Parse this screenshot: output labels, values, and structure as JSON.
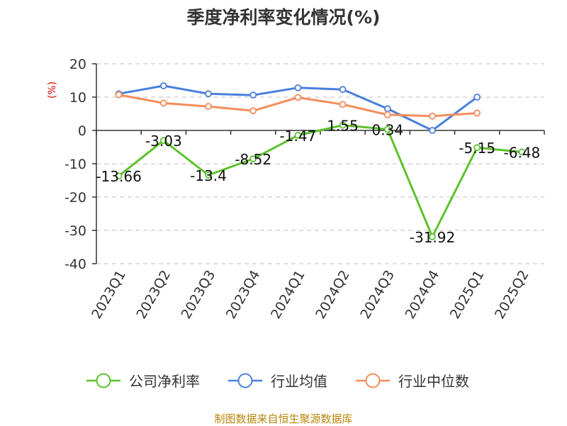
{
  "chart_data": {
    "type": "line",
    "title": "季度净利率变化情况(%)",
    "ylabel": "(%)",
    "xlabel": "",
    "categories": [
      "2023Q1",
      "2023Q2",
      "2023Q3",
      "2023Q4",
      "2024Q1",
      "2024Q2",
      "2024Q3",
      "2024Q4",
      "2025Q1",
      "2025Q2"
    ],
    "ylim": [
      -40,
      20
    ],
    "yticks": [
      20,
      10,
      0,
      -10,
      -20,
      -30,
      -40
    ],
    "grid": true,
    "legend_position": "bottom",
    "series": [
      {
        "name": "公司净利率",
        "color": "#5cc22c",
        "values": [
          -13.66,
          -3.03,
          -13.4,
          -8.52,
          -1.47,
          1.55,
          0.34,
          -31.92,
          -5.15,
          -6.48
        ],
        "labels": [
          "-13.66",
          "-3.03",
          "-13.4",
          "-8.52",
          "-1.47",
          "1.55",
          "0.34",
          "-31.92",
          "-5.15",
          "-6.48"
        ]
      },
      {
        "name": "行业均值",
        "color": "#4a7fdc",
        "values": [
          11,
          13.4,
          11,
          10.6,
          12.8,
          12.3,
          6.5,
          0,
          10,
          null
        ]
      },
      {
        "name": "行业中位数",
        "color": "#f58c5c",
        "values": [
          10.7,
          8.2,
          7.2,
          5.9,
          9.9,
          7.8,
          4.7,
          4.3,
          5.2,
          null
        ]
      }
    ]
  },
  "source_note": "制图数据来自恒生聚源数据库"
}
